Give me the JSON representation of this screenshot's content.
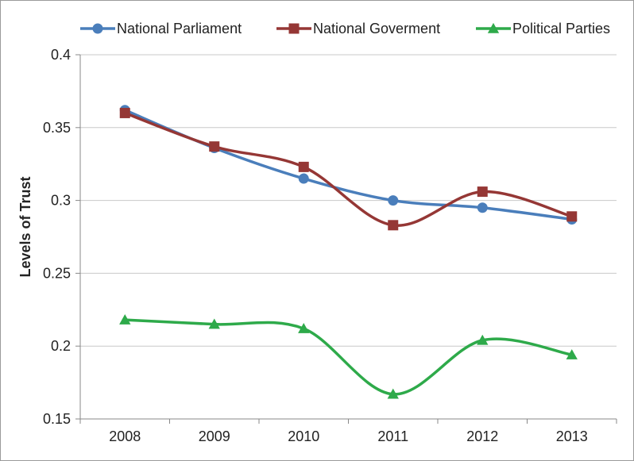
{
  "chart_data": {
    "type": "line",
    "title": "",
    "xlabel": "",
    "ylabel": "Levels of Trust",
    "categories": [
      "2008",
      "2009",
      "2010",
      "2011",
      "2012",
      "2013"
    ],
    "ylim": [
      0.15,
      0.4
    ],
    "yticks": [
      0.15,
      0.2,
      0.25,
      0.3,
      0.35,
      0.4
    ],
    "ytick_labels": [
      "0.15",
      "0.2",
      "0.25",
      "0.3",
      "0.35",
      "0.4"
    ],
    "grid": true,
    "legend": "top",
    "smooth": true,
    "series": [
      {
        "name": "National Parliament",
        "values": [
          0.362,
          0.336,
          0.315,
          0.3,
          0.295,
          0.287
        ],
        "color": "#4a7ebb",
        "marker": "circle"
      },
      {
        "name": "National Goverment",
        "values": [
          0.36,
          0.337,
          0.323,
          0.283,
          0.306,
          0.289
        ],
        "color": "#953735",
        "marker": "square"
      },
      {
        "name": "Political Parties",
        "values": [
          0.218,
          0.215,
          0.212,
          0.167,
          0.204,
          0.194
        ],
        "color": "#2eaa4a",
        "marker": "triangle"
      }
    ]
  }
}
